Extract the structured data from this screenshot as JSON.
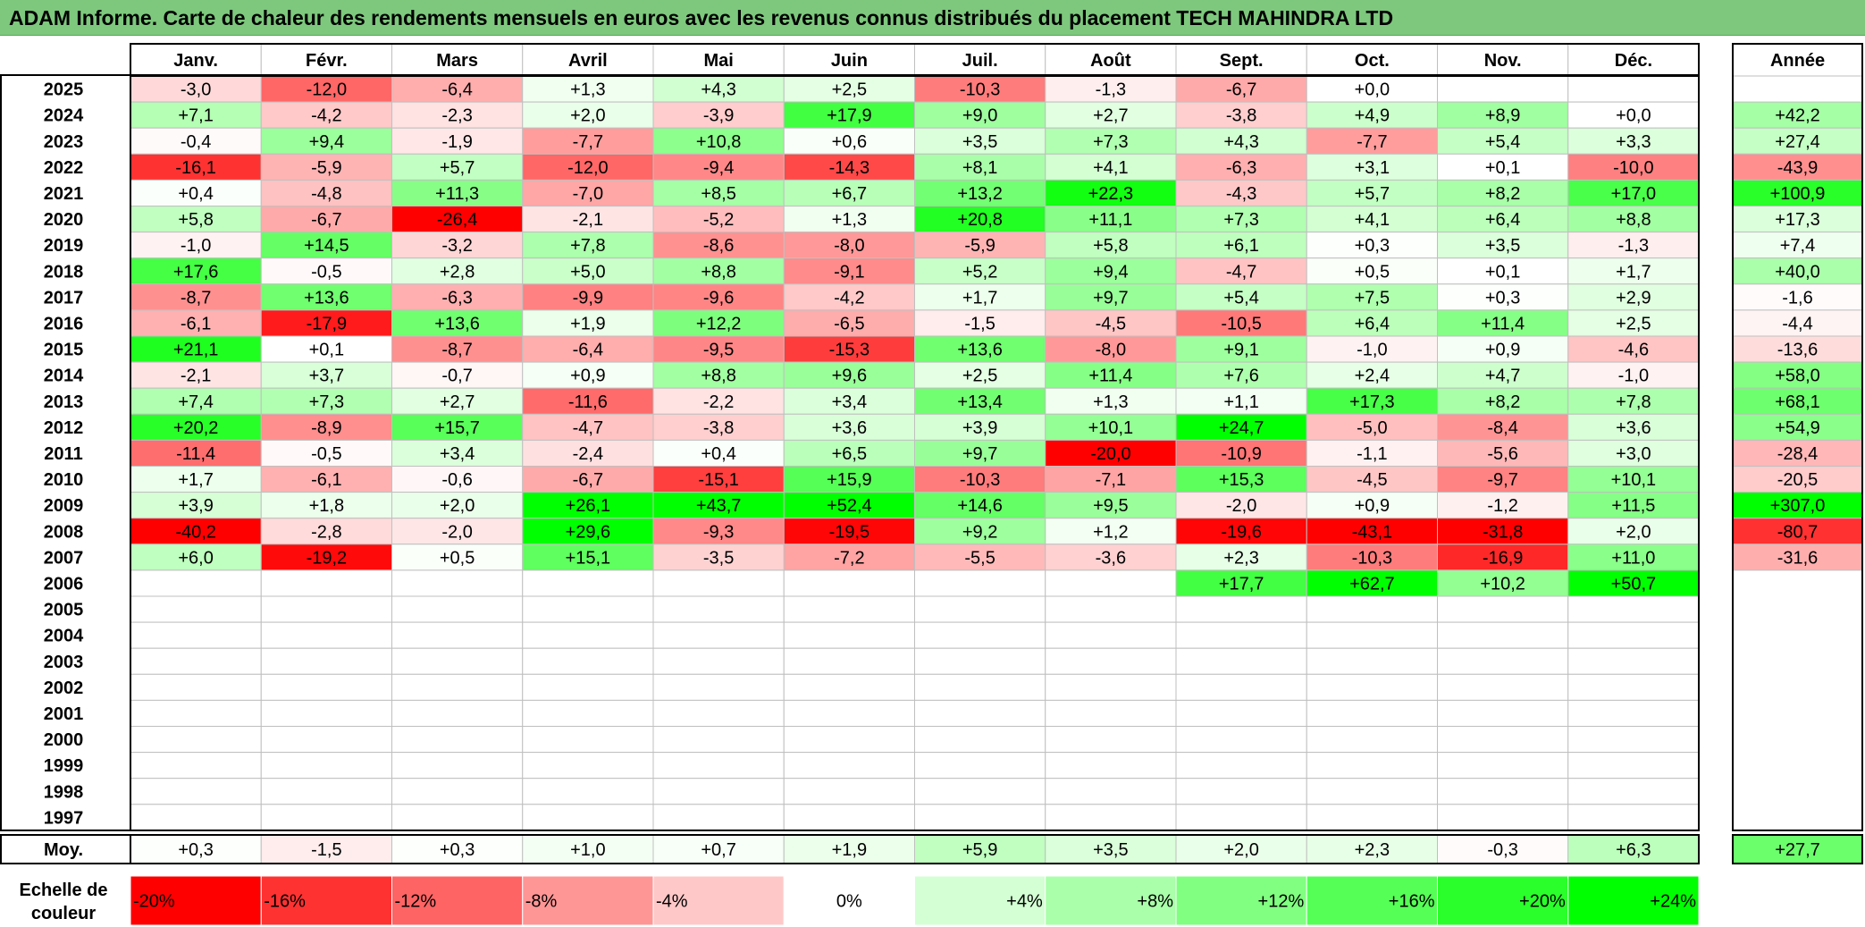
{
  "title": "ADAM Informe. Carte de chaleur des rendements mensuels en euros avec les revenus connus distribués du placement TECH MAHINDRA LTD",
  "chart_data": {
    "type": "heatmap",
    "months": [
      "Janv.",
      "Févr.",
      "Mars",
      "Avril",
      "Mai",
      "Juin",
      "Juil.",
      "Août",
      "Sept.",
      "Oct.",
      "Nov.",
      "Déc."
    ],
    "year_header": "Année",
    "avg_label": "Moy.",
    "rows": [
      {
        "year": "2025",
        "values": [
          "-3,0",
          "-12,0",
          "-6,4",
          "+1,3",
          "+4,3",
          "+2,5",
          "-10,3",
          "-1,3",
          "-6,7",
          "+0,0",
          "",
          ""
        ],
        "total": ""
      },
      {
        "year": "2024",
        "values": [
          "+7,1",
          "-4,2",
          "-2,3",
          "+2,0",
          "-3,9",
          "+17,9",
          "+9,0",
          "+2,7",
          "-3,8",
          "+4,9",
          "+8,9",
          "+0,0"
        ],
        "total": "+42,2"
      },
      {
        "year": "2023",
        "values": [
          "-0,4",
          "+9,4",
          "-1,9",
          "-7,7",
          "+10,8",
          "+0,6",
          "+3,5",
          "+7,3",
          "+4,3",
          "-7,7",
          "+5,4",
          "+3,3"
        ],
        "total": "+27,4"
      },
      {
        "year": "2022",
        "values": [
          "-16,1",
          "-5,9",
          "+5,7",
          "-12,0",
          "-9,4",
          "-14,3",
          "+8,1",
          "+4,1",
          "-6,3",
          "+3,1",
          "+0,1",
          "-10,0"
        ],
        "total": "-43,9"
      },
      {
        "year": "2021",
        "values": [
          "+0,4",
          "-4,8",
          "+11,3",
          "-7,0",
          "+8,5",
          "+6,7",
          "+13,2",
          "+22,3",
          "-4,3",
          "+5,7",
          "+8,2",
          "+17,0"
        ],
        "total": "+100,9"
      },
      {
        "year": "2020",
        "values": [
          "+5,8",
          "-6,7",
          "-26,4",
          "-2,1",
          "-5,2",
          "+1,3",
          "+20,8",
          "+11,1",
          "+7,3",
          "+4,1",
          "+6,4",
          "+8,8"
        ],
        "total": "+17,3"
      },
      {
        "year": "2019",
        "values": [
          "-1,0",
          "+14,5",
          "-3,2",
          "+7,8",
          "-8,6",
          "-8,0",
          "-5,9",
          "+5,8",
          "+6,1",
          "+0,3",
          "+3,5",
          "-1,3"
        ],
        "total": "+7,4"
      },
      {
        "year": "2018",
        "values": [
          "+17,6",
          "-0,5",
          "+2,8",
          "+5,0",
          "+8,8",
          "-9,1",
          "+5,2",
          "+9,4",
          "-4,7",
          "+0,5",
          "+0,1",
          "+1,7"
        ],
        "total": "+40,0"
      },
      {
        "year": "2017",
        "values": [
          "-8,7",
          "+13,6",
          "-6,3",
          "-9,9",
          "-9,6",
          "-4,2",
          "+1,7",
          "+9,7",
          "+5,4",
          "+7,5",
          "+0,3",
          "+2,9"
        ],
        "total": "-1,6"
      },
      {
        "year": "2016",
        "values": [
          "-6,1",
          "-17,9",
          "+13,6",
          "+1,9",
          "+12,2",
          "-6,5",
          "-1,5",
          "-4,5",
          "-10,5",
          "+6,4",
          "+11,4",
          "+2,5"
        ],
        "total": "-4,4"
      },
      {
        "year": "2015",
        "values": [
          "+21,1",
          "+0,1",
          "-8,7",
          "-6,4",
          "-9,5",
          "-15,3",
          "+13,6",
          "-8,0",
          "+9,1",
          "-1,0",
          "+0,9",
          "-4,6"
        ],
        "total": "-13,6"
      },
      {
        "year": "2014",
        "values": [
          "-2,1",
          "+3,7",
          "-0,7",
          "+0,9",
          "+8,8",
          "+9,6",
          "+2,5",
          "+11,4",
          "+7,6",
          "+2,4",
          "+4,7",
          "-1,0"
        ],
        "total": "+58,0"
      },
      {
        "year": "2013",
        "values": [
          "+7,4",
          "+7,3",
          "+2,7",
          "-11,6",
          "-2,2",
          "+3,4",
          "+13,4",
          "+1,3",
          "+1,1",
          "+17,3",
          "+8,2",
          "+7,8"
        ],
        "total": "+68,1"
      },
      {
        "year": "2012",
        "values": [
          "+20,2",
          "-8,9",
          "+15,7",
          "-4,7",
          "-3,8",
          "+3,6",
          "+3,9",
          "+10,1",
          "+24,7",
          "-5,0",
          "-8,4",
          "+3,6"
        ],
        "total": "+54,9"
      },
      {
        "year": "2011",
        "values": [
          "-11,4",
          "-0,5",
          "+3,4",
          "-2,4",
          "+0,4",
          "+6,5",
          "+9,7",
          "-20,0",
          "-10,9",
          "-1,1",
          "-5,6",
          "+3,0"
        ],
        "total": "-28,4"
      },
      {
        "year": "2010",
        "values": [
          "+1,7",
          "-6,1",
          "-0,6",
          "-6,7",
          "-15,1",
          "+15,9",
          "-10,3",
          "-7,1",
          "+15,3",
          "-4,5",
          "-9,7",
          "+10,1"
        ],
        "total": "-20,5"
      },
      {
        "year": "2009",
        "values": [
          "+3,9",
          "+1,8",
          "+2,0",
          "+26,1",
          "+43,7",
          "+52,4",
          "+14,6",
          "+9,5",
          "-2,0",
          "+0,9",
          "-1,2",
          "+11,5"
        ],
        "total": "+307,0"
      },
      {
        "year": "2008",
        "values": [
          "-40,2",
          "-2,8",
          "-2,0",
          "+29,6",
          "-9,3",
          "-19,5",
          "+9,2",
          "+1,2",
          "-19,6",
          "-43,1",
          "-31,8",
          "+2,0"
        ],
        "total": "-80,7"
      },
      {
        "year": "2007",
        "values": [
          "+6,0",
          "-19,2",
          "+0,5",
          "+15,1",
          "-3,5",
          "-7,2",
          "-5,5",
          "-3,6",
          "+2,3",
          "-10,3",
          "-16,9",
          "+11,0"
        ],
        "total": "-31,6"
      },
      {
        "year": "2006",
        "values": [
          "",
          "",
          "",
          "",
          "",
          "",
          "",
          "",
          "+17,7",
          "+62,7",
          "+10,2",
          "+50,7"
        ],
        "total": ""
      },
      {
        "year": "2005",
        "values": [
          "",
          "",
          "",
          "",
          "",
          "",
          "",
          "",
          "",
          "",
          "",
          ""
        ],
        "total": ""
      },
      {
        "year": "2004",
        "values": [
          "",
          "",
          "",
          "",
          "",
          "",
          "",
          "",
          "",
          "",
          "",
          ""
        ],
        "total": ""
      },
      {
        "year": "2003",
        "values": [
          "",
          "",
          "",
          "",
          "",
          "",
          "",
          "",
          "",
          "",
          "",
          ""
        ],
        "total": ""
      },
      {
        "year": "2002",
        "values": [
          "",
          "",
          "",
          "",
          "",
          "",
          "",
          "",
          "",
          "",
          "",
          ""
        ],
        "total": ""
      },
      {
        "year": "2001",
        "values": [
          "",
          "",
          "",
          "",
          "",
          "",
          "",
          "",
          "",
          "",
          "",
          ""
        ],
        "total": ""
      },
      {
        "year": "2000",
        "values": [
          "",
          "",
          "",
          "",
          "",
          "",
          "",
          "",
          "",
          "",
          "",
          ""
        ],
        "total": ""
      },
      {
        "year": "1999",
        "values": [
          "",
          "",
          "",
          "",
          "",
          "",
          "",
          "",
          "",
          "",
          "",
          ""
        ],
        "total": ""
      },
      {
        "year": "1998",
        "values": [
          "",
          "",
          "",
          "",
          "",
          "",
          "",
          "",
          "",
          "",
          "",
          ""
        ],
        "total": ""
      },
      {
        "year": "1997",
        "values": [
          "",
          "",
          "",
          "",
          "",
          "",
          "",
          "",
          "",
          "",
          "",
          ""
        ],
        "total": ""
      }
    ],
    "averages": [
      "+0,3",
      "-1,5",
      "+0,3",
      "+1,0",
      "+0,7",
      "+1,9",
      "+5,9",
      "+3,5",
      "+2,0",
      "+2,3",
      "-0,3",
      "+6,3"
    ],
    "average_total": "+27,7",
    "scale_label_line1": "Echelle de",
    "scale_label_line2": "couleur",
    "scale": [
      {
        "label": "-20%",
        "color": "#ff0000"
      },
      {
        "label": "-16%",
        "color": "#ff3232"
      },
      {
        "label": "-12%",
        "color": "#ff6464"
      },
      {
        "label": "-8%",
        "color": "#ff9696"
      },
      {
        "label": "-4%",
        "color": "#ffc8c8"
      },
      {
        "label": "0%",
        "color": "#ffffff"
      },
      {
        "label": "+4%",
        "color": "#d4ffd4"
      },
      {
        "label": "+8%",
        "color": "#aaffaa"
      },
      {
        "label": "+12%",
        "color": "#80ff80"
      },
      {
        "label": "+16%",
        "color": "#55ff55"
      },
      {
        "label": "+20%",
        "color": "#2bff2b"
      },
      {
        "label": "+24%",
        "color": "#00ff00"
      }
    ]
  }
}
